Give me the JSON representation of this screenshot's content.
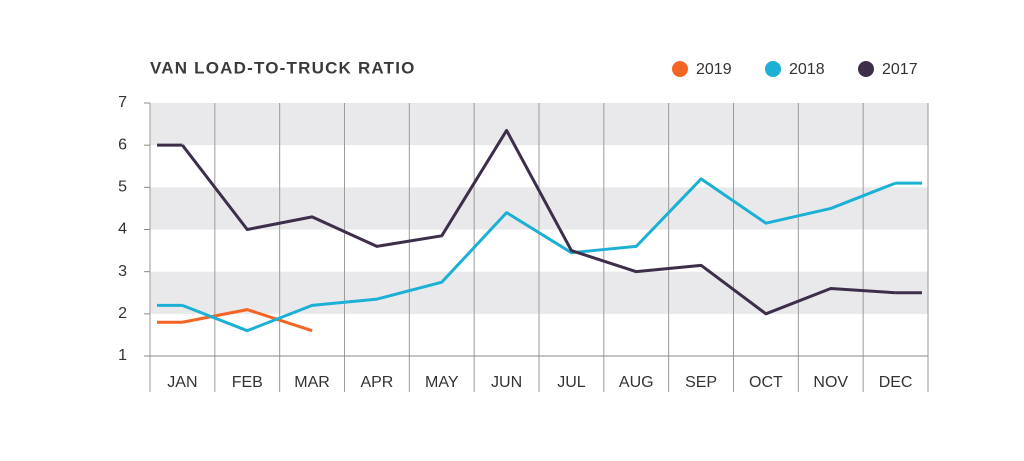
{
  "chart_data": {
    "type": "line",
    "title": "VAN LOAD-TO-TRUCK RATIO",
    "categories": [
      "JAN",
      "FEB",
      "MAR",
      "APR",
      "MAY",
      "JUN",
      "JUL",
      "AUG",
      "SEP",
      "OCT",
      "NOV",
      "DEC"
    ],
    "series": [
      {
        "name": "2019",
        "color": "#f26522",
        "values": [
          1.8,
          2.1,
          1.6,
          null,
          null,
          null,
          null,
          null,
          null,
          null,
          null,
          null
        ]
      },
      {
        "name": "2018",
        "color": "#1cb0d4",
        "values": [
          2.2,
          1.6,
          2.2,
          2.35,
          2.75,
          4.4,
          3.45,
          3.6,
          5.2,
          4.15,
          4.5,
          5.1
        ]
      },
      {
        "name": "2017",
        "color": "#3d2e4a",
        "values": [
          6.0,
          4.0,
          4.3,
          3.6,
          3.85,
          6.35,
          3.5,
          3.0,
          3.15,
          2.0,
          2.6,
          2.5
        ]
      }
    ],
    "ylim": [
      1,
      7
    ],
    "yticks": [
      1,
      2,
      3,
      4,
      5,
      6,
      7
    ],
    "grid": true,
    "shaded_bands": true,
    "legend": "top-right"
  }
}
